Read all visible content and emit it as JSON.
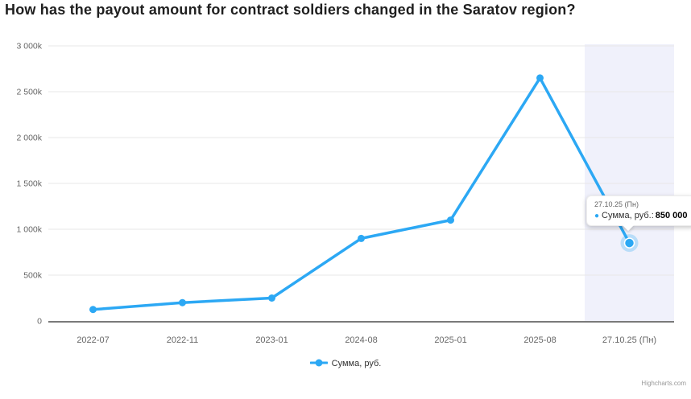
{
  "page": {
    "credits": "Highcharts.com"
  },
  "chart_data": {
    "type": "line",
    "title": "How has the payout amount for contract soldiers changed in the Saratov region?",
    "xlabel": "",
    "ylabel": "",
    "categories": [
      "2022-07",
      "2022-11",
      "2023-01",
      "2024-08",
      "2025-01",
      "2025-08",
      "27.10.25 (Пн)"
    ],
    "series": [
      {
        "name": "Сумма, руб.",
        "values": [
          125000,
          200000,
          250000,
          900000,
          1100000,
          2650000,
          850000
        ]
      }
    ],
    "ylim": [
      0,
      3000000
    ],
    "yticks": {
      "values": [
        0,
        500000,
        1000000,
        1500000,
        2000000,
        2500000,
        3000000
      ],
      "labels": [
        "0",
        "500k",
        "1 000k",
        "1 500k",
        "2 000k",
        "2 500k",
        "3 000k"
      ]
    },
    "grid": "horizontal",
    "legend_position": "bottom-center",
    "plot_band": {
      "category": "27.10.25 (Пн)",
      "from_index": 6,
      "color": "#f0f1fb"
    },
    "highlighted_point": {
      "index": 6,
      "category": "27.10.25 (Пн)",
      "value": 850000
    }
  },
  "tooltip": {
    "header": "27.10.25 (Пн)",
    "series_label": "Сумма, руб.:",
    "value": "850 000"
  },
  "colors": {
    "series": "#2ca8f4",
    "plot_band": "#f0f1fb",
    "grid": "#e7e7e7",
    "axis_line": "#7a7a7a",
    "tick_label": "#666666",
    "halo": "rgba(44,168,244,0.28)"
  }
}
